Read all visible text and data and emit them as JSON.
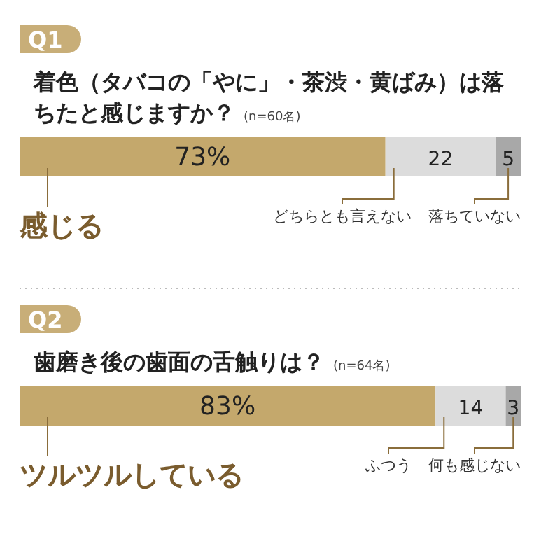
{
  "chart_data": [
    {
      "type": "bar",
      "orientation": "horizontal",
      "stacked": true,
      "title": "着色（タバコの「やに」・茶渋・黄ばみ）は落ちたと感じますか？",
      "subtitle": "(n=60名)",
      "annotations": [
        "Q1"
      ],
      "categories": [
        null
      ],
      "xlim": [
        0,
        100
      ],
      "tick_labels": false,
      "series": [
        {
          "name": "感じる",
          "color": "#c4a86c",
          "values": [
            73
          ],
          "value_labels": [
            "73%"
          ]
        },
        {
          "name": "どちらとも言えない",
          "color": "#dcdcdc",
          "values": [
            22
          ],
          "value_labels": [
            "22"
          ]
        },
        {
          "name": "落ちていない",
          "color": "#a8a8a8",
          "values": [
            5
          ],
          "value_labels": [
            "5"
          ]
        }
      ]
    },
    {
      "type": "bar",
      "orientation": "horizontal",
      "stacked": true,
      "title": "歯磨き後の歯面の舌触りは？",
      "subtitle": "(n=64名)",
      "annotations": [
        "Q2"
      ],
      "categories": [
        null
      ],
      "xlim": [
        0,
        100
      ],
      "tick_labels": false,
      "series": [
        {
          "name": "ツルツルしている",
          "color": "#c4a86c",
          "values": [
            83
          ],
          "value_labels": [
            "83%"
          ]
        },
        {
          "name": "ふつう",
          "color": "#dcdcdc",
          "values": [
            14
          ],
          "value_labels": [
            "14"
          ]
        },
        {
          "name": "何も感じない",
          "color": "#a8a8a8",
          "values": [
            3
          ],
          "value_labels": [
            "3"
          ]
        }
      ]
    }
  ]
}
